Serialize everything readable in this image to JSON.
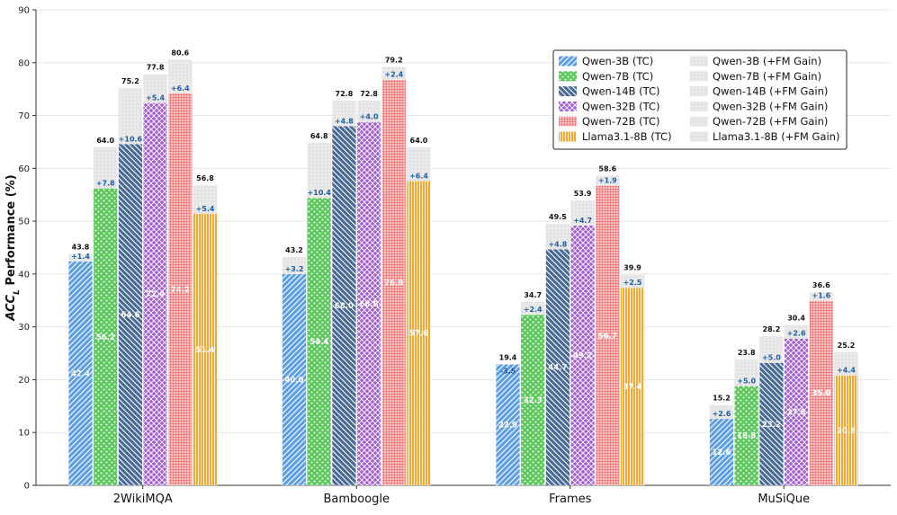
{
  "chart_data": {
    "type": "bar",
    "stacked_overlay": true,
    "ylabel_prefix": "ACC",
    "ylabel_sub": "L",
    "ylabel_suffix": " Performance (%)",
    "ylim": [
      0,
      90
    ],
    "yticks": [
      0,
      10,
      20,
      30,
      40,
      50,
      60,
      70,
      80,
      90
    ],
    "grid": true,
    "legend_position": "top-right",
    "categories": [
      "2WikiMQA",
      "Bamboogle",
      "Frames",
      "MuSiQue"
    ],
    "series": [
      {
        "name": "Qwen-3B (TC)",
        "gain_name": "Qwen-3B (+FM Gain)",
        "color": "#5e9ee6",
        "pattern": "diag",
        "base": [
          42.4,
          40.0,
          22.9,
          12.6
        ],
        "gain": [
          "+1.4",
          "+3.2",
          "-3.5",
          "+2.6"
        ],
        "total": [
          43.8,
          43.2,
          19.4,
          15.2
        ]
      },
      {
        "name": "Qwen-7B (TC)",
        "gain_name": "Qwen-7B (+FM Gain)",
        "color": "#5cc85c",
        "pattern": "dots",
        "base": [
          56.2,
          54.4,
          32.3,
          18.8
        ],
        "gain": [
          "+7.8",
          "+10.4",
          "+2.4",
          "+5.0"
        ],
        "total": [
          64.0,
          64.8,
          34.7,
          23.8
        ]
      },
      {
        "name": "Qwen-14B (TC)",
        "gain_name": "Qwen-14B (+FM Gain)",
        "color": "#4a6a96",
        "pattern": "back",
        "base": [
          64.6,
          68.0,
          44.7,
          23.2
        ],
        "gain": [
          "+10.6",
          "+4.8",
          "+4.8",
          "+5.0"
        ],
        "total": [
          75.2,
          72.8,
          49.5,
          28.2
        ]
      },
      {
        "name": "Qwen-32B (TC)",
        "gain_name": "Qwen-32B (+FM Gain)",
        "color": "#a35fd6",
        "pattern": "cross",
        "base": [
          72.4,
          68.8,
          49.2,
          27.8
        ],
        "gain": [
          "+5.4",
          "+4.0",
          "+4.7",
          "+2.6"
        ],
        "total": [
          77.8,
          72.8,
          53.9,
          30.4
        ]
      },
      {
        "name": "Qwen-72B (TC)",
        "gain_name": "Qwen-72B (+FM Gain)",
        "color": "#ee5a5a",
        "pattern": "grid",
        "base": [
          74.2,
          76.8,
          56.7,
          35.0
        ],
        "gain": [
          "+6.4",
          "+2.4",
          "+1.9",
          "+1.6"
        ],
        "total": [
          80.6,
          79.2,
          58.6,
          36.6
        ]
      },
      {
        "name": "Llama3.1-8B (TC)",
        "gain_name": "Llama3.1-8B (+FM Gain)",
        "color": "#f4a830",
        "pattern": "vert",
        "base": [
          51.4,
          57.6,
          37.4,
          20.8
        ],
        "gain": [
          "+5.4",
          "+6.4",
          "+2.5",
          "+4.4"
        ],
        "total": [
          56.8,
          64.0,
          39.9,
          25.2
        ]
      }
    ],
    "gain_color": "#e3e3e3"
  }
}
